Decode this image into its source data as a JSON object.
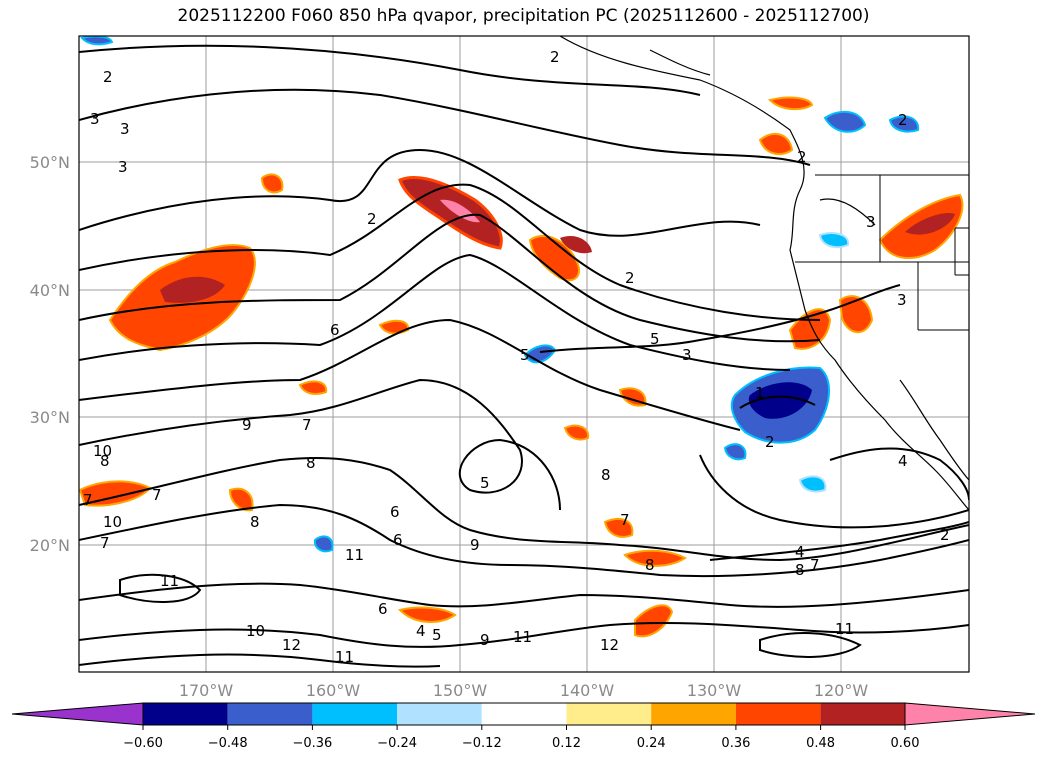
{
  "title": "2025112200 F060 850 hPa qvapor, precipitation PC (2025112600 - 2025112700)",
  "lat_labels": [
    "50°N",
    "40°N",
    "30°N",
    "20°N"
  ],
  "lon_labels": [
    "170°W",
    "160°W",
    "150°W",
    "140°W",
    "130°W",
    "120°W"
  ],
  "colorbar": {
    "ticks": [
      "−0.60",
      "−0.48",
      "−0.36",
      "−0.24",
      "−0.12",
      "0.12",
      "0.24",
      "0.36",
      "0.48",
      "0.60"
    ],
    "colors": [
      "#9a32cd",
      "#00008b",
      "#3a5fcd",
      "#00bfff",
      "#b0e2ff",
      "#ffffff",
      "#ffec8b",
      "#ffa500",
      "#ff4500",
      "#b22222",
      "#ff82ab"
    ]
  },
  "contour_labels": [
    "2",
    "2",
    "3",
    "3",
    "3",
    "2",
    "2",
    "2",
    "2",
    "3",
    "3",
    "6",
    "5",
    "3",
    "1",
    "2",
    "4",
    "9",
    "7",
    "8",
    "10",
    "8",
    "7",
    "8",
    "7",
    "5",
    "5",
    "10",
    "7",
    "6",
    "9",
    "6",
    "6",
    "5",
    "4",
    "8",
    "4",
    "8",
    "7",
    "2",
    "11",
    "10",
    "12",
    "11",
    "11",
    "9",
    "11",
    "12",
    "11",
    "7",
    "8"
  ],
  "colors": {
    "grid": "#9e9e9e",
    "contour": "#000000",
    "coast": "#000000"
  }
}
